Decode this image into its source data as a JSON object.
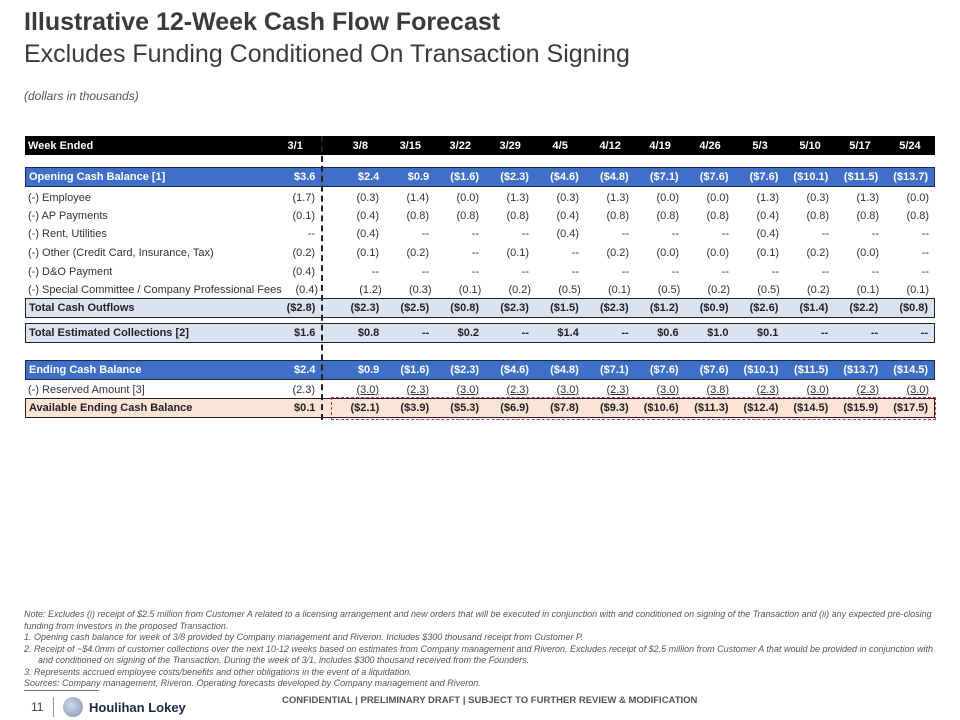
{
  "header": {
    "title": "Illustrative 12-Week Cash Flow Forecast",
    "subtitle": "Excludes Funding Conditioned On Transaction Signing",
    "units": "(dollars in thousands)"
  },
  "table": {
    "week_label": "Week Ended",
    "weeks": [
      "3/1",
      "3/8",
      "3/15",
      "3/22",
      "3/29",
      "4/5",
      "4/12",
      "4/19",
      "4/26",
      "5/3",
      "5/10",
      "5/17",
      "5/24"
    ],
    "rows": [
      {
        "label": "Opening Cash Balance [1]",
        "style": "blue",
        "values": [
          "$3.6",
          "$2.4",
          "$0.9",
          "($1.6)",
          "($2.3)",
          "($4.6)",
          "($4.8)",
          "($7.1)",
          "($7.6)",
          "($7.6)",
          "($10.1)",
          "($11.5)",
          "($13.7)"
        ]
      },
      {
        "label": "(-) Employee",
        "style": "plain",
        "values": [
          "(1.7)",
          "(0.3)",
          "(1.4)",
          "(0.0)",
          "(1.3)",
          "(0.3)",
          "(1.3)",
          "(0.0)",
          "(0.0)",
          "(1.3)",
          "(0.3)",
          "(1.3)",
          "(0.0)"
        ]
      },
      {
        "label": "(-) AP Payments",
        "style": "plain",
        "values": [
          "(0.1)",
          "(0.4)",
          "(0.8)",
          "(0.8)",
          "(0.8)",
          "(0.4)",
          "(0.8)",
          "(0.8)",
          "(0.8)",
          "(0.4)",
          "(0.8)",
          "(0.8)",
          "(0.8)"
        ]
      },
      {
        "label": "(-) Rent, Utilities",
        "style": "plain",
        "values": [
          "--",
          "(0.4)",
          "--",
          "--",
          "--",
          "(0.4)",
          "--",
          "--",
          "--",
          "(0.4)",
          "--",
          "--",
          "--"
        ]
      },
      {
        "label": "(-) Other (Credit Card, Insurance, Tax)",
        "style": "plain",
        "values": [
          "(0.2)",
          "(0.1)",
          "(0.2)",
          "--",
          "(0.1)",
          "--",
          "(0.2)",
          "(0.0)",
          "(0.0)",
          "(0.1)",
          "(0.2)",
          "(0.0)",
          "--"
        ]
      },
      {
        "label": "(-) D&O Payment",
        "style": "plain",
        "values": [
          "(0.4)",
          "--",
          "--",
          "--",
          "--",
          "--",
          "--",
          "--",
          "--",
          "--",
          "--",
          "--",
          "--"
        ]
      },
      {
        "label": "(-) Special Committee / Company Professional Fees",
        "style": "plain",
        "values": [
          "(0.4)",
          "(1.2)",
          "(0.3)",
          "(0.1)",
          "(0.2)",
          "(0.5)",
          "(0.1)",
          "(0.5)",
          "(0.2)",
          "(0.5)",
          "(0.2)",
          "(0.1)",
          "(0.1)"
        ]
      },
      {
        "label": "Total Cash Outflows",
        "style": "lt",
        "values": [
          "($2.8)",
          "($2.3)",
          "($2.5)",
          "($0.8)",
          "($2.3)",
          "($1.5)",
          "($2.3)",
          "($1.2)",
          "($0.9)",
          "($2.6)",
          "($1.4)",
          "($2.2)",
          "($0.8)"
        ]
      },
      {
        "label": "Total Estimated Collections [2]",
        "style": "lt",
        "values": [
          "$1.6",
          "$0.8",
          "--",
          "$0.2",
          "--",
          "$1.4",
          "--",
          "$0.6",
          "$1.0",
          "$0.1",
          "--",
          "--",
          "--"
        ]
      },
      {
        "label": "Ending Cash Balance",
        "style": "blue",
        "values": [
          "$2.4",
          "$0.9",
          "($1.6)",
          "($2.3)",
          "($4.6)",
          "($4.8)",
          "($7.1)",
          "($7.6)",
          "($7.6)",
          "($10.1)",
          "($11.5)",
          "($13.7)",
          "($14.5)"
        ]
      },
      {
        "label": "(-) Reserved Amount [3]",
        "style": "plain und",
        "values": [
          "(2.3)",
          "(3.0)",
          "(2.3)",
          "(3.0)",
          "(2.3)",
          "(3.0)",
          "(2.3)",
          "(3.0)",
          "(3.8)",
          "(2.3)",
          "(3.0)",
          "(2.3)",
          "(3.0)"
        ]
      },
      {
        "label": "Available Ending Cash Balance",
        "style": "peach",
        "values": [
          "$0.1",
          "($2.1)",
          "($3.9)",
          "($5.3)",
          "($6.9)",
          "($7.8)",
          "($9.3)",
          "($10.6)",
          "($11.3)",
          "($12.4)",
          "($14.5)",
          "($15.9)",
          "($17.5)"
        ]
      }
    ]
  },
  "notes": {
    "note": "Note: Excludes (i) receipt of $2.5 million from Customer A related to a licensing arrangement and new orders that will be executed in conjunction with and conditioned on signing of the Transaction and (ii) any expected pre-closing funding from investors in the proposed Transaction.",
    "items": [
      "1.  Opening cash balance for week of 3/8 provided by Company management and Riveron. Includes $300 thousand receipt from Customer P.",
      "2.  Receipt of ~$4.0mm of customer collections over the next 10-12 weeks based on estimates from Company management and Riveron. Excludes receipt of $2.5 million from Customer A that would be provided in conjunction with and conditioned on signing of the Transaction. During the week of 3/1, includes $300 thousand received from the Founders.",
      "3.  Represents accrued employee costs/benefits and other obligations in the event of a liquidation."
    ],
    "sources": "Sources: Company management, Riveron. Operating forecasts developed by Company management and Riveron."
  },
  "footer": {
    "page": "11",
    "brand": "Houlihan Lokey",
    "confidential": "CONFIDENTIAL | PRELIMINARY DRAFT | SUBJECT TO FURTHER REVIEW & MODIFICATION"
  }
}
